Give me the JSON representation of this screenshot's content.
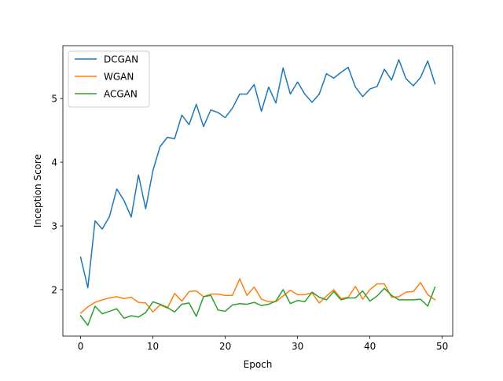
{
  "chart_data": {
    "type": "line",
    "title": "",
    "xlabel": "Epoch",
    "ylabel": "Inception Score",
    "xlim": [
      -2.45,
      51.45
    ],
    "ylim": [
      1.27,
      5.83
    ],
    "xticks": [
      0,
      10,
      20,
      30,
      40,
      50
    ],
    "yticks": [
      2,
      3,
      4,
      5
    ],
    "grid": false,
    "legend_position": "upper-left",
    "x": [
      0,
      1,
      2,
      3,
      4,
      5,
      6,
      7,
      8,
      9,
      10,
      11,
      12,
      13,
      14,
      15,
      16,
      17,
      18,
      19,
      20,
      21,
      22,
      23,
      24,
      25,
      26,
      27,
      28,
      29,
      30,
      31,
      32,
      33,
      34,
      35,
      36,
      37,
      38,
      39,
      40,
      41,
      42,
      43,
      44,
      45,
      46,
      47,
      48,
      49
    ],
    "series": [
      {
        "name": "DCGAN",
        "color": "#1f77b4",
        "values": [
          2.51,
          2.03,
          3.08,
          2.95,
          3.15,
          3.58,
          3.4,
          3.14,
          3.8,
          3.27,
          3.87,
          4.25,
          4.39,
          4.37,
          4.74,
          4.59,
          4.91,
          4.56,
          4.82,
          4.78,
          4.7,
          4.85,
          5.07,
          5.07,
          5.22,
          4.8,
          5.18,
          4.93,
          5.48,
          5.07,
          5.26,
          5.07,
          4.94,
          5.07,
          5.39,
          5.32,
          5.41,
          5.49,
          5.18,
          5.03,
          5.15,
          5.19,
          5.46,
          5.29,
          5.61,
          5.31,
          5.2,
          5.33,
          5.59,
          5.23
        ]
      },
      {
        "name": "WGAN",
        "color": "#ff7f0e",
        "values": [
          1.63,
          1.73,
          1.8,
          1.84,
          1.87,
          1.89,
          1.86,
          1.88,
          1.8,
          1.79,
          1.65,
          1.76,
          1.71,
          1.94,
          1.82,
          1.97,
          1.98,
          1.89,
          1.93,
          1.93,
          1.91,
          1.91,
          2.17,
          1.91,
          2.04,
          1.85,
          1.81,
          1.81,
          1.9,
          1.99,
          1.92,
          1.92,
          1.95,
          1.79,
          1.9,
          2.0,
          1.86,
          1.88,
          2.05,
          1.85,
          2.0,
          2.09,
          2.09,
          1.88,
          1.89,
          1.96,
          1.97,
          2.11,
          1.92,
          1.84
        ]
      },
      {
        "name": "ACGAN",
        "color": "#2ca02c",
        "values": [
          1.59,
          1.44,
          1.74,
          1.62,
          1.66,
          1.7,
          1.55,
          1.59,
          1.57,
          1.64,
          1.81,
          1.77,
          1.72,
          1.65,
          1.77,
          1.79,
          1.58,
          1.89,
          1.91,
          1.68,
          1.66,
          1.76,
          1.78,
          1.77,
          1.8,
          1.75,
          1.77,
          1.82,
          2.0,
          1.78,
          1.83,
          1.81,
          1.96,
          1.88,
          1.84,
          1.97,
          1.84,
          1.87,
          1.87,
          1.98,
          1.82,
          1.9,
          2.02,
          1.91,
          1.84,
          1.84,
          1.84,
          1.85,
          1.74,
          2.04
        ]
      }
    ]
  }
}
